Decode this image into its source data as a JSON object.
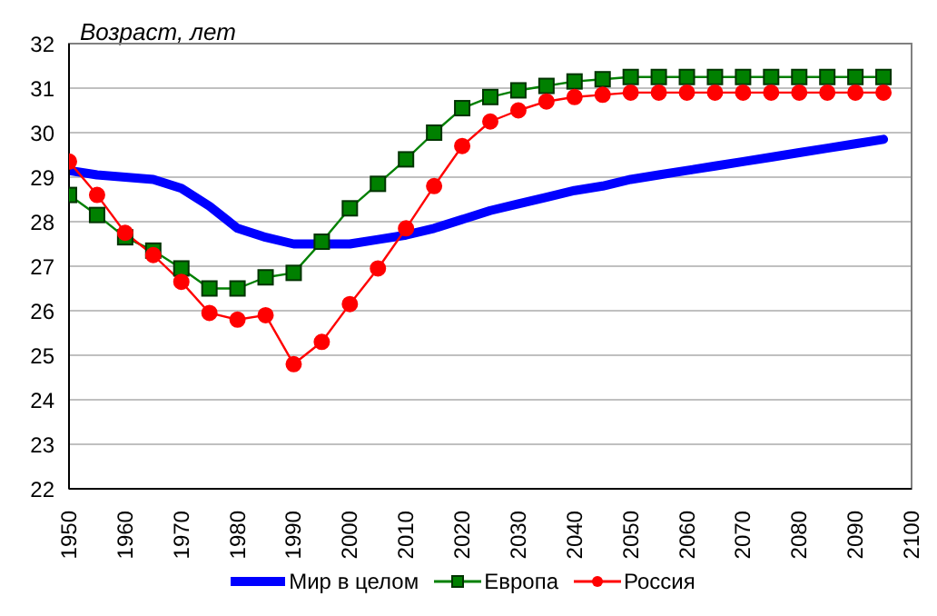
{
  "chart_data": {
    "type": "line",
    "ylabel": "Возраст, лет",
    "x": [
      1950,
      1955,
      1960,
      1965,
      1970,
      1975,
      1980,
      1985,
      1990,
      1995,
      2000,
      2005,
      2010,
      2015,
      2020,
      2025,
      2030,
      2035,
      2040,
      2045,
      2050,
      2055,
      2060,
      2065,
      2070,
      2075,
      2080,
      2085,
      2090,
      2095
    ],
    "series": [
      {
        "name": "Мир в целом",
        "color": "#0000ff",
        "marker": "none",
        "values": [
          29.15,
          29.05,
          29.0,
          28.95,
          28.75,
          28.35,
          27.85,
          27.65,
          27.5,
          27.5,
          27.5,
          27.6,
          27.7,
          27.85,
          28.05,
          28.25,
          28.4,
          28.55,
          28.7,
          28.8,
          28.95,
          29.05,
          29.15,
          29.25,
          29.35,
          29.45,
          29.55,
          29.65,
          29.75,
          29.85
        ]
      },
      {
        "name": "Европа",
        "color": "#008000",
        "marker": "square",
        "values": [
          28.6,
          28.15,
          27.65,
          27.35,
          26.95,
          26.5,
          26.5,
          26.75,
          26.85,
          27.55,
          28.3,
          28.85,
          29.4,
          30.0,
          30.55,
          30.8,
          30.95,
          31.05,
          31.15,
          31.2,
          31.25,
          31.25,
          31.25,
          31.25,
          31.25,
          31.25,
          31.25,
          31.25,
          31.25,
          31.25
        ]
      },
      {
        "name": "Россия",
        "color": "#ff0000",
        "marker": "circle",
        "values": [
          29.35,
          28.6,
          27.75,
          27.25,
          26.65,
          25.95,
          25.8,
          25.9,
          24.8,
          25.3,
          26.15,
          26.95,
          27.85,
          28.8,
          29.7,
          30.25,
          30.5,
          30.7,
          30.8,
          30.85,
          30.9,
          30.9,
          30.9,
          30.9,
          30.9,
          30.9,
          30.9,
          30.9,
          30.9,
          30.9
        ]
      }
    ],
    "xlim": [
      1950,
      2100
    ],
    "xticks": [
      1950,
      1960,
      1970,
      1980,
      1990,
      2000,
      2010,
      2020,
      2030,
      2040,
      2050,
      2060,
      2070,
      2080,
      2090,
      2100
    ],
    "ylim": [
      22,
      32
    ],
    "yticks": [
      22,
      23,
      24,
      25,
      26,
      27,
      28,
      29,
      30,
      31,
      32
    ],
    "grid": "y",
    "legend": "bottom"
  }
}
